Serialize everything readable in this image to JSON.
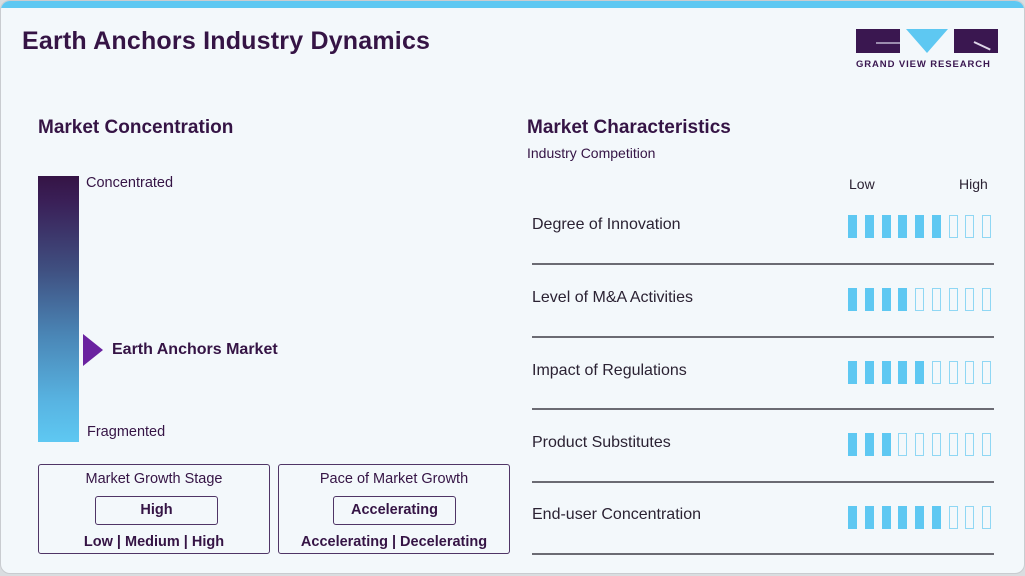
{
  "header": {
    "title": "Earth Anchors Industry Dynamics",
    "logo_text": "GRAND VIEW RESEARCH"
  },
  "colors": {
    "accent_blue": "#5ec8f2",
    "brand_purple": "#351445",
    "marker_purple": "#6a22a0"
  },
  "concentration": {
    "title": "Market Concentration",
    "top_label": "Concentrated",
    "bottom_label": "Fragmented",
    "marker_label": "Earth Anchors Market",
    "marker_position_pct": 65
  },
  "growth_stage": {
    "title": "Market Growth Stage",
    "value": "High",
    "options": "Low | Medium | High"
  },
  "growth_pace": {
    "title": "Pace of Market Growth",
    "value": "Accelerating",
    "options": "Accelerating | Decelerating"
  },
  "characteristics": {
    "title": "Market Characteristics",
    "subtitle": "Industry Competition",
    "scale_low": "Low",
    "scale_high": "High",
    "total_segments": 9,
    "rows": [
      {
        "label": "Degree of Innovation",
        "filled": 6
      },
      {
        "label": "Level of M&A Activities",
        "filled": 4
      },
      {
        "label": "Impact of Regulations",
        "filled": 5
      },
      {
        "label": "Product Substitutes",
        "filled": 3
      },
      {
        "label": "End-user Concentration",
        "filled": 6
      }
    ]
  }
}
